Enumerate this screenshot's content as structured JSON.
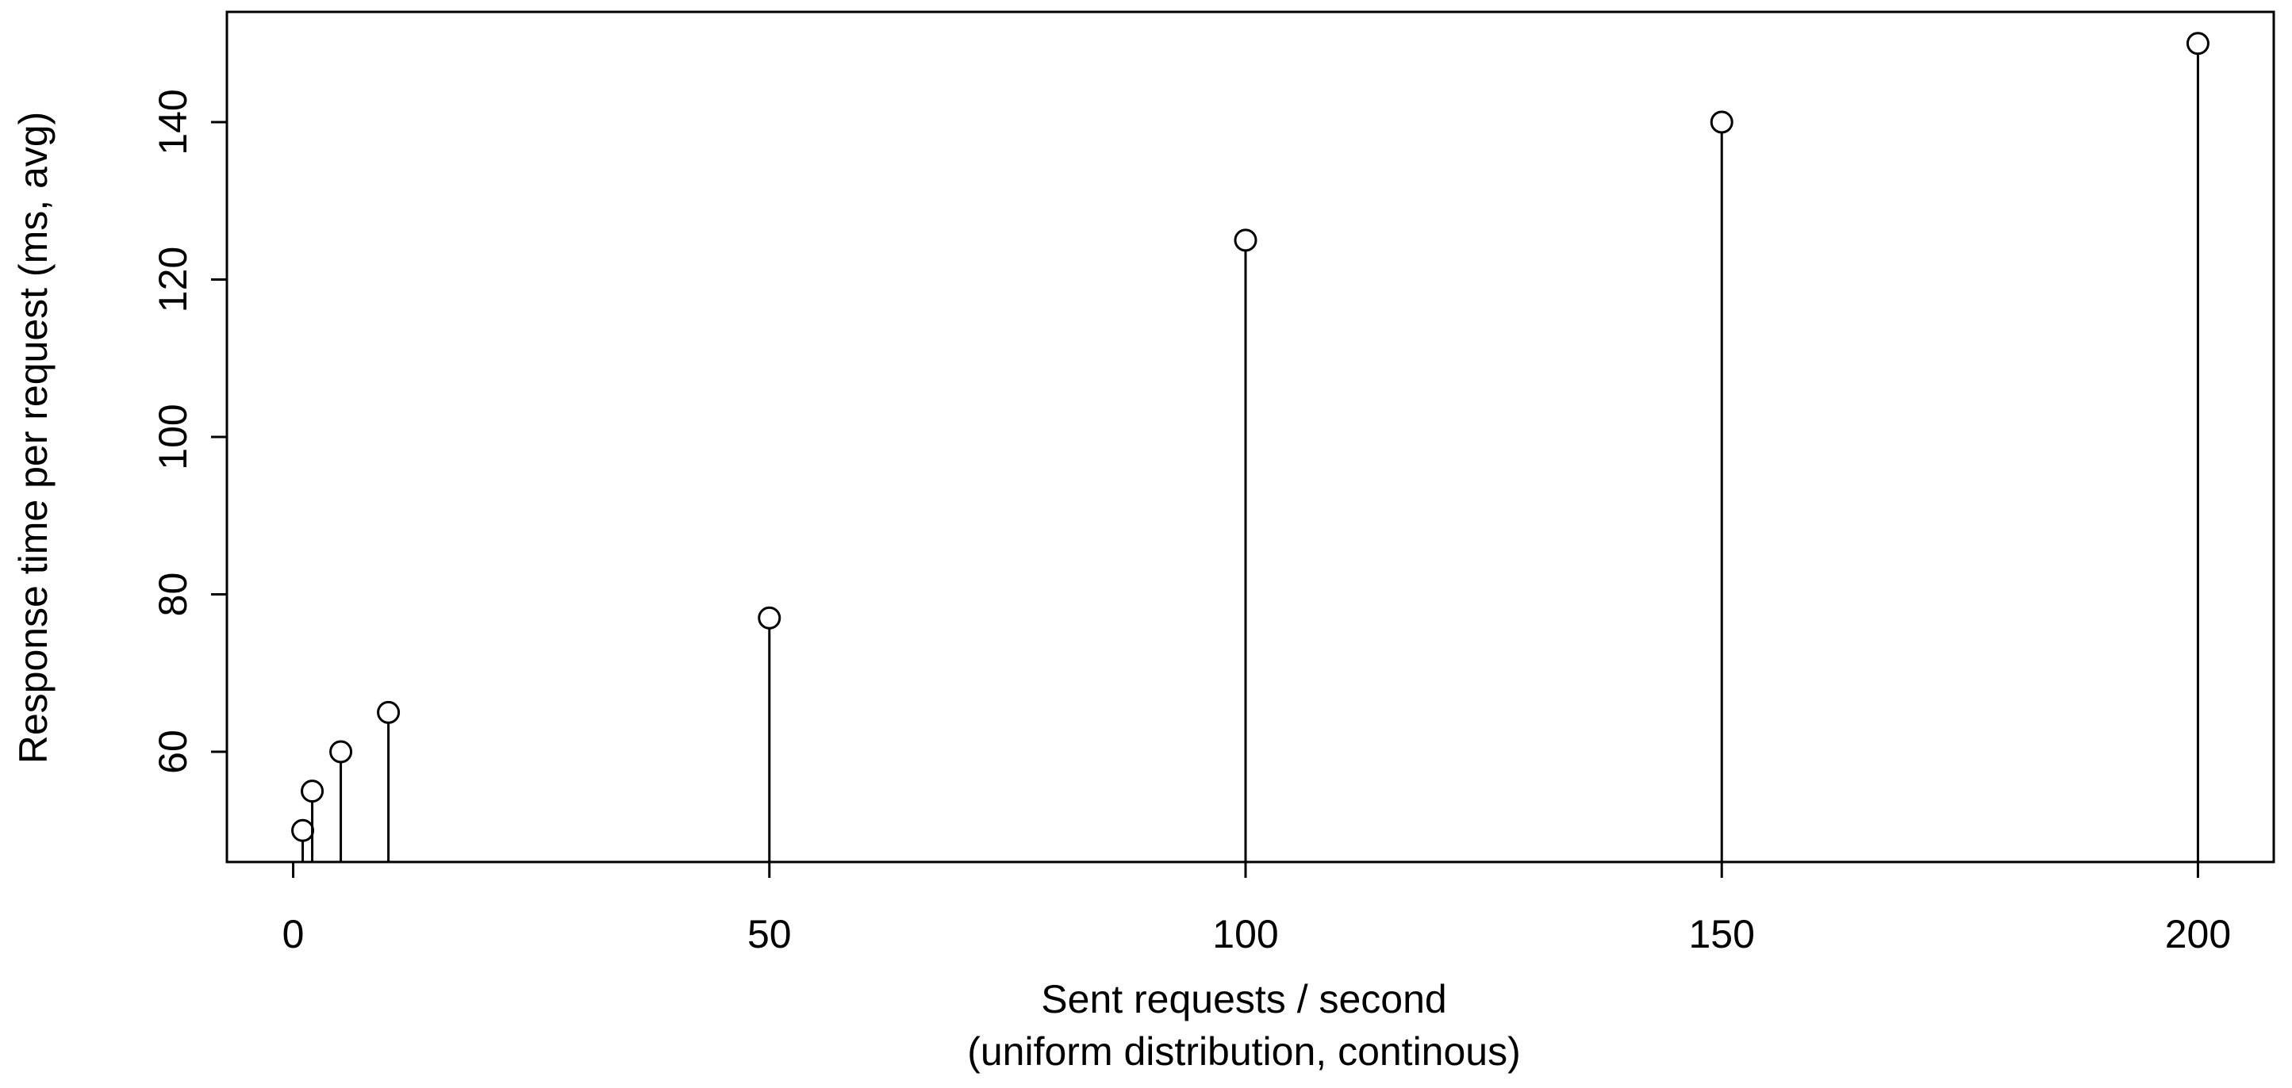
{
  "chart_data": {
    "type": "stem",
    "x_label": [
      "Sent requests / second",
      "(uniform distribution, continous)"
    ],
    "y_label": "Response time per request (ms, avg)",
    "x": [
      1,
      2,
      5,
      10,
      50,
      100,
      150,
      200
    ],
    "values": [
      50,
      55,
      60,
      65,
      77,
      125,
      140,
      150
    ],
    "color": "#000000",
    "xlim": [
      -6.96,
      207.96
    ],
    "xticks": [
      0,
      50,
      100,
      150,
      200
    ],
    "ylim": [
      46,
      154
    ],
    "yticks": [
      60,
      80,
      100,
      120,
      140
    ]
  }
}
